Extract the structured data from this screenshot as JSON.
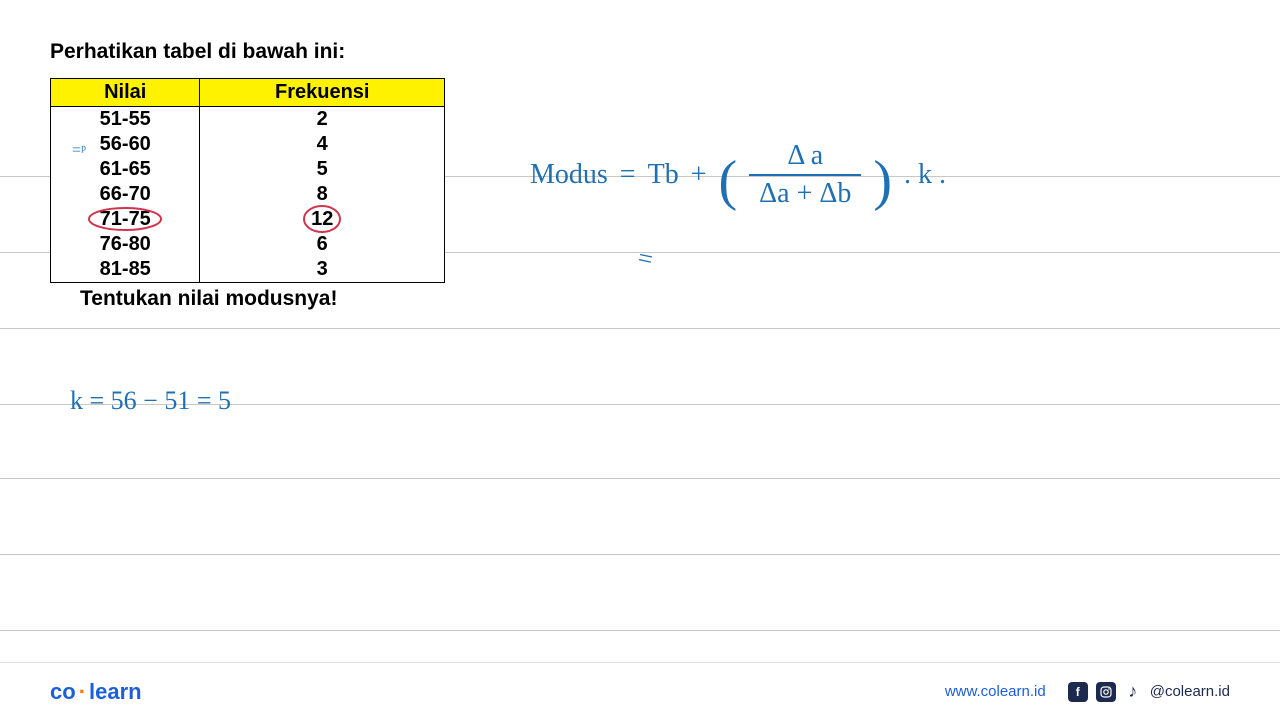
{
  "title": "Perhatikan tabel di bawah ini:",
  "table": {
    "headers": [
      "Nilai",
      "Frekuensi"
    ],
    "rows": [
      {
        "nilai": "51-55",
        "frek": "2",
        "highlight": false
      },
      {
        "nilai": "56-60",
        "frek": "4",
        "highlight": false
      },
      {
        "nilai": "61-65",
        "frek": "5",
        "highlight": false
      },
      {
        "nilai": "66-70",
        "frek": "8",
        "highlight": false
      },
      {
        "nilai": "71-75",
        "frek": "12",
        "highlight": true
      },
      {
        "nilai": "76-80",
        "frek": "6",
        "highlight": false
      },
      {
        "nilai": "81-85",
        "frek": "3",
        "highlight": false
      }
    ],
    "header_bg": "#fff200",
    "border_color": "#000000",
    "font_size": 20,
    "highlight_stroke": "#d1344c",
    "p_annotation": "=ᵖ"
  },
  "question": "Tentukan nilai modusnya!",
  "handwriting": {
    "color": "#1f6fb3",
    "font_family": "Comic Sans MS",
    "k_calc": "k = 56 − 51 = 5",
    "formula_label": "Modus",
    "formula_eq": "=",
    "formula_tb": "Tb",
    "formula_plus": "+",
    "formula_da": "Δ a",
    "formula_den": "Δa + Δb",
    "formula_k": ". k .",
    "eq2": "="
  },
  "ruled_lines": {
    "color": "#c7c7c7",
    "positions": [
      176,
      252,
      328,
      404,
      478,
      554,
      630
    ]
  },
  "footer": {
    "logo_left": "co",
    "logo_right": "learn",
    "url": "www.colearn.id",
    "handle": "@colearn.id",
    "icon_bg": "#1b2a4e",
    "logo_color": "#1b5fd9",
    "dot_color": "#ff7a00"
  }
}
